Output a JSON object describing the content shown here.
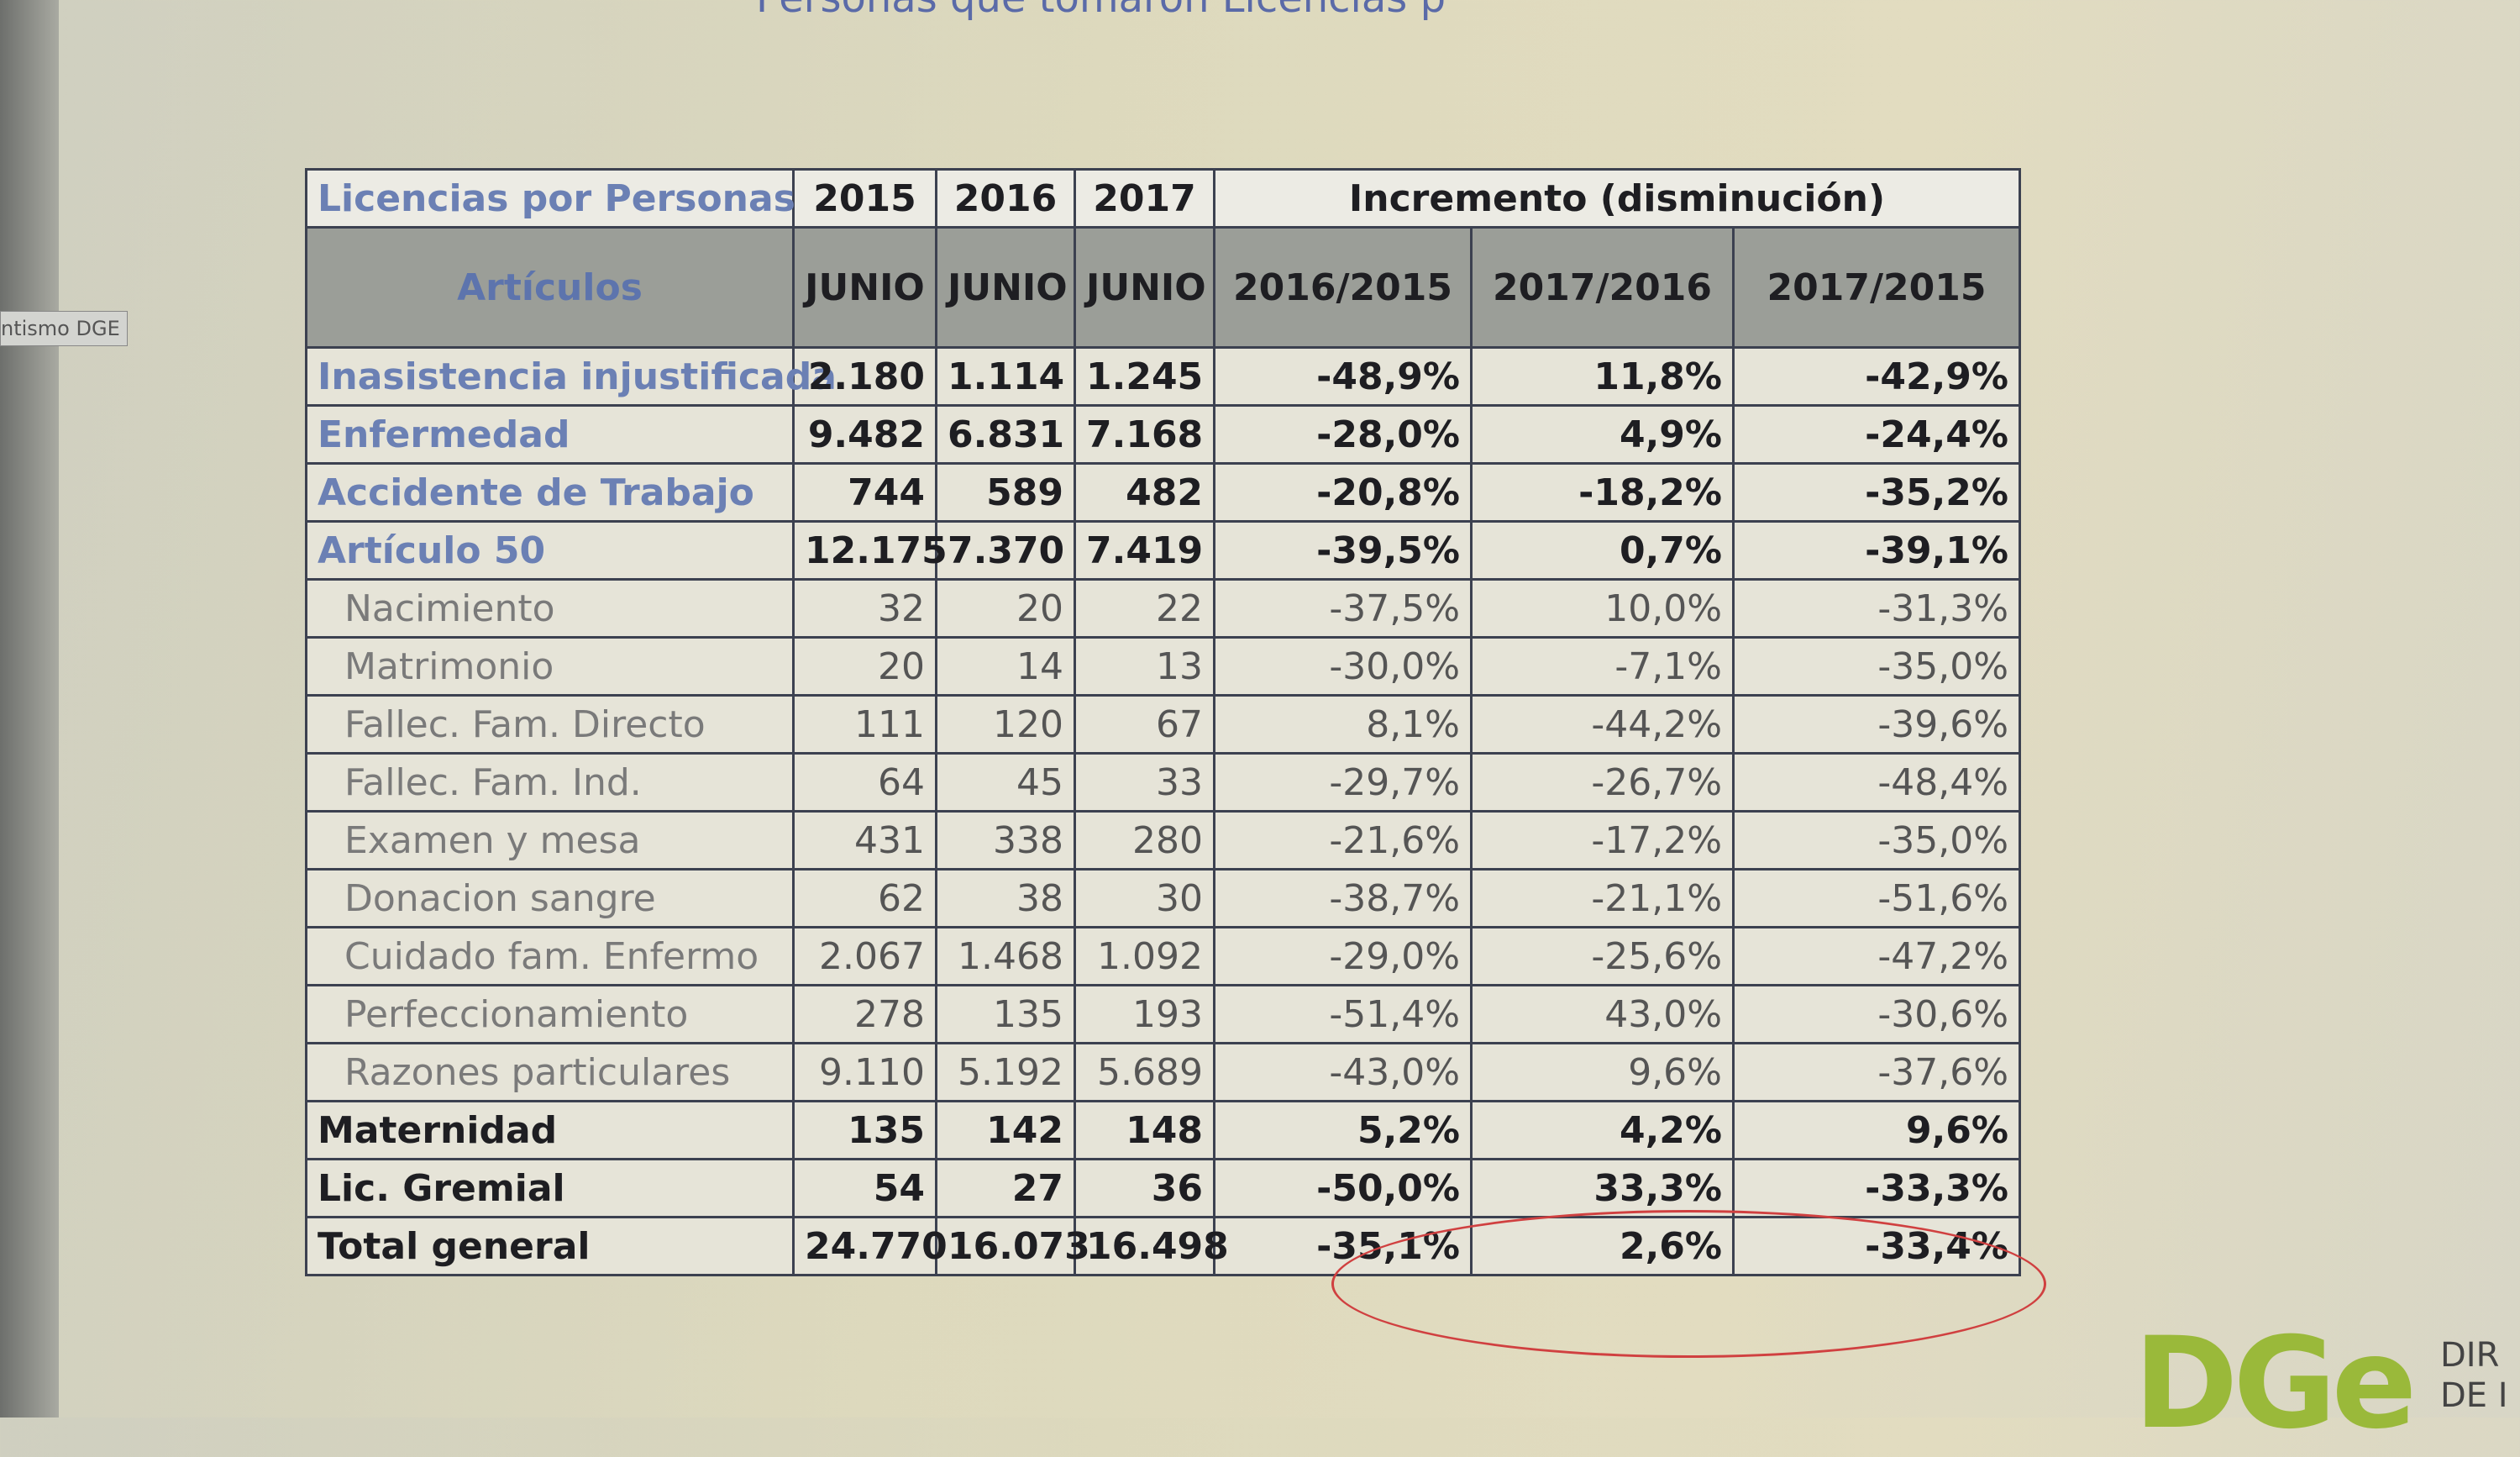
{
  "page_title": "Personas que tomaron Licencias p",
  "side_label": "ntismo DGE",
  "logo": {
    "mark": "DGe",
    "line1": "DIR",
    "line2": "DE I"
  },
  "table": {
    "header": [
      "Licencias por Personas",
      "2015",
      "2016",
      "2017",
      "Incremento (disminución)"
    ],
    "subheader": [
      "Artículos",
      "JUNIO",
      "JUNIO",
      "JUNIO",
      "2016/2015",
      "2017/2016",
      "2017/2015"
    ],
    "rows": [
      [
        "Inasistencia injustificada",
        "2.180",
        "1.114",
        "1.245",
        "-48,9%",
        "11,8%",
        "-42,9%"
      ],
      [
        "Enfermedad",
        "9.482",
        "6.831",
        "7.168",
        "-28,0%",
        "4,9%",
        "-24,4%"
      ],
      [
        "Accidente de Trabajo",
        "744",
        "589",
        "482",
        "-20,8%",
        "-18,2%",
        "-35,2%"
      ],
      [
        "Artículo 50",
        "12.175",
        "7.370",
        "7.419",
        "-39,5%",
        "0,7%",
        "-39,1%"
      ],
      [
        "Nacimiento",
        "32",
        "20",
        "22",
        "-37,5%",
        "10,0%",
        "-31,3%"
      ],
      [
        "Matrimonio",
        "20",
        "14",
        "13",
        "-30,0%",
        "-7,1%",
        "-35,0%"
      ],
      [
        "Fallec. Fam. Directo",
        "111",
        "120",
        "67",
        "8,1%",
        "-44,2%",
        "-39,6%"
      ],
      [
        "Fallec. Fam. Ind.",
        "64",
        "45",
        "33",
        "-29,7%",
        "-26,7%",
        "-48,4%"
      ],
      [
        "Examen y mesa",
        "431",
        "338",
        "280",
        "-21,6%",
        "-17,2%",
        "-35,0%"
      ],
      [
        "Donacion sangre",
        "62",
        "38",
        "30",
        "-38,7%",
        "-21,1%",
        "-51,6%"
      ],
      [
        "Cuidado fam. Enfermo",
        "2.067",
        "1.468",
        "1.092",
        "-29,0%",
        "-25,6%",
        "-47,2%"
      ],
      [
        "Perfeccionamiento",
        "278",
        "135",
        "193",
        "-51,4%",
        "43,0%",
        "-30,6%"
      ],
      [
        "Razones particulares",
        "9.110",
        "5.192",
        "5.689",
        "-43,0%",
        "9,6%",
        "-37,6%"
      ],
      [
        "Maternidad",
        "135",
        "142",
        "148",
        "5,2%",
        "4,2%",
        "9,6%"
      ],
      [
        "Lic. Gremial",
        "54",
        "27",
        "36",
        "-50,0%",
        "33,3%",
        "-33,3%"
      ],
      [
        "Total general",
        "24.770",
        "16.073",
        "16.498",
        "-35,1%",
        "2,6%",
        "-33,4%"
      ]
    ]
  }
}
